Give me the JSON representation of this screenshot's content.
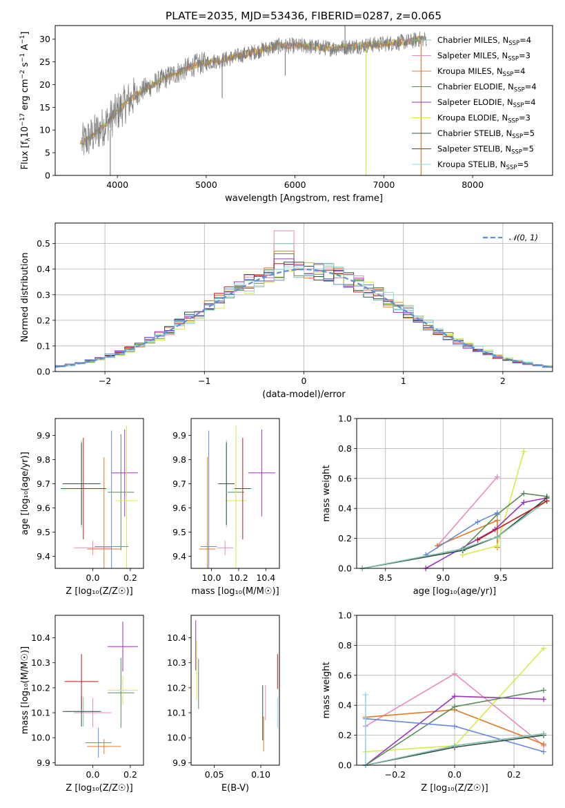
{
  "figure": {
    "title": "PLATE=2035, MJD=53436, FIBERID=0287, z=0.065"
  },
  "colors": {
    "chabrier_miles": "#7fbfaf",
    "salpeter_miles": "#e88bc0",
    "kroupa_miles": "#e07b24",
    "chabrier_elodie": "#5a8a5a",
    "salpeter_elodie": "#9b30c0",
    "kroupa_elodie": "#d8ea4a",
    "chabrier_stelib": "#2f4f3f",
    "salpeter_stelib": "#c01818",
    "kroupa_stelib": "#8ad8e8",
    "data_spectrum": "#808080",
    "model_blue": "#6688dd",
    "normal_curve": "#5b8fd8",
    "grid": "#b0b0b0"
  },
  "chart_data": [
    {
      "id": "spectrum",
      "type": "line",
      "xlabel": "wavelength [Angstrom, rest frame]",
      "ylabel_parts": [
        "Flux [f",
        "λ",
        "10",
        "−17",
        " erg cm",
        "−2",
        " s",
        "−1",
        " A",
        "−1",
        "]"
      ],
      "xlim": [
        3300,
        8900
      ],
      "ylim": [
        0,
        33
      ],
      "xticks": [
        4000,
        5000,
        6000,
        7000,
        8000
      ],
      "yticks": [
        0,
        5,
        10,
        15,
        20,
        25,
        30
      ],
      "grid": false,
      "legend_position": "right",
      "legend": [
        {
          "label": "Chabrier MILES, N",
          "sub": "SSP",
          "suffix": "=4",
          "color_key": "chabrier_miles"
        },
        {
          "label": "Salpeter MILES, N",
          "sub": "SSP",
          "suffix": "=3",
          "color_key": "salpeter_miles"
        },
        {
          "label": "Kroupa MILES, N",
          "sub": "SSP",
          "suffix": "=4",
          "color_key": "kroupa_miles"
        },
        {
          "label": "Chabrier ELODIE, N",
          "sub": "SSP",
          "suffix": "=4",
          "color_key": "chabrier_elodie"
        },
        {
          "label": "Salpeter ELODIE, N",
          "sub": "SSP",
          "suffix": "=4",
          "color_key": "salpeter_elodie"
        },
        {
          "label": "Kroupa ELODIE, N",
          "sub": "SSP",
          "suffix": "=3",
          "color_key": "kroupa_elodie"
        },
        {
          "label": "Chabrier STELIB, N",
          "sub": "SSP",
          "suffix": "=5",
          "color_key": "chabrier_stelib"
        },
        {
          "label": "Salpeter STELIB, N",
          "sub": "SSP",
          "suffix": "=5",
          "color_key": "salpeter_stelib"
        },
        {
          "label": "Kroupa STELIB, N",
          "sub": "SSP",
          "suffix": "=5",
          "color_key": "kroupa_stelib"
        }
      ],
      "trend": {
        "x": [
          3600,
          3800,
          3950,
          4100,
          4300,
          4600,
          4900,
          5200,
          5500,
          5800,
          6100,
          6400,
          6700,
          7000,
          7300,
          7400
        ],
        "y": [
          7,
          10,
          13,
          16,
          19,
          22,
          24.5,
          25.5,
          27,
          28.5,
          28.5,
          28,
          28.5,
          29,
          29.5,
          30
        ]
      },
      "vertical_features": [
        {
          "x": 3920,
          "y_low": 0,
          "y_high": 10
        },
        {
          "x": 5180,
          "y_low": 17,
          "y_high": 24
        },
        {
          "x": 5890,
          "y_low": 22,
          "y_high": 28
        },
        {
          "x": 6563,
          "y_low": 27,
          "y_high": 34
        },
        {
          "x": 6800,
          "y_low": 0,
          "y_high": 28
        },
        {
          "x": 7420,
          "y_low": 0,
          "y_high": 30
        }
      ]
    },
    {
      "id": "residual_hist",
      "type": "histogram",
      "xlabel": "(data-model)/error",
      "ylabel": "Normed distribution",
      "xlim": [
        -2.5,
        2.5
      ],
      "ylim": [
        0,
        0.58
      ],
      "xticks": [
        -2,
        -1,
        0,
        1,
        2
      ],
      "yticks": [
        0.0,
        0.1,
        0.2,
        0.3,
        0.4,
        0.5
      ],
      "grid": true,
      "bin_width": 0.1,
      "legend": [
        {
          "label": "𝒩(0, 1)",
          "color_key": "normal_curve",
          "style": "dashed"
        }
      ],
      "peak_values": [
        0.5,
        0.55,
        0.47,
        0.46,
        0.44
      ],
      "gaussian": {
        "mu": 0,
        "sigma": 1
      }
    },
    {
      "id": "age_vs_Z",
      "type": "scatter",
      "xlabel": "Z [log₁₀(Z/Z☉)]",
      "ylabel": "age  [log₁₀(age/yr)]",
      "xlim": [
        -0.2,
        0.27
      ],
      "ylim": [
        9.35,
        9.97
      ],
      "xticks": [
        0.0,
        0.2
      ],
      "xticklabels": [
        "0.0",
        "0.2"
      ],
      "yticks": [
        9.4,
        9.5,
        9.6,
        9.7,
        9.8,
        9.9
      ],
      "grid": false,
      "points": [
        {
          "x": -0.06,
          "xerr": 0.1,
          "y": 9.7,
          "yerr": 0.18,
          "color_key": "chabrier_miles"
        },
        {
          "x": 0.0,
          "xerr": 0.1,
          "y": 9.435,
          "yerr": 0.03,
          "color_key": "salpeter_miles"
        },
        {
          "x": 0.06,
          "xerr": 0.09,
          "y": 9.43,
          "yerr": 0.38,
          "color_key": "kroupa_miles"
        },
        {
          "x": 0.15,
          "xerr": 0.07,
          "y": 9.665,
          "yerr": 0.24,
          "color_key": "chabrier_elodie"
        },
        {
          "x": 0.17,
          "xerr": 0.07,
          "y": 9.745,
          "yerr": 0.18,
          "color_key": "salpeter_elodie"
        },
        {
          "x": 0.18,
          "xerr": 0.06,
          "y": 9.63,
          "yerr": 0.31,
          "color_key": "kroupa_elodie"
        },
        {
          "x": -0.06,
          "xerr": 0.1,
          "y": 9.7,
          "yerr": 0.17,
          "color_key": "chabrier_stelib"
        },
        {
          "x": -0.05,
          "xerr": 0.12,
          "y": 9.68,
          "yerr": 0.21,
          "color_key": "salpeter_stelib"
        },
        {
          "x": 0.1,
          "xerr": 0.09,
          "y": 9.44,
          "yerr": 0.48,
          "color_key": "model_blue"
        }
      ]
    },
    {
      "id": "age_vs_mass",
      "type": "scatter",
      "xlabel": "mass [log₁₀(M/M☉)]",
      "ylabel": "",
      "xlim": [
        9.85,
        10.5
      ],
      "ylim": [
        9.35,
        9.97
      ],
      "xticks": [
        10.0,
        10.2,
        10.4
      ],
      "xticklabels": [
        "10.0",
        "10.2",
        "10.4"
      ],
      "yticks": [
        9.4,
        9.5,
        9.6,
        9.7,
        9.8,
        9.9
      ],
      "grid": false,
      "points": [
        {
          "x": 10.11,
          "xerr": 0.06,
          "y": 9.7,
          "yerr": 0.18,
          "color_key": "chabrier_miles"
        },
        {
          "x": 10.1,
          "xerr": 0.06,
          "y": 9.435,
          "yerr": 0.03,
          "color_key": "salpeter_miles"
        },
        {
          "x": 9.97,
          "xerr": 0.06,
          "y": 9.43,
          "yerr": 0.38,
          "color_key": "kroupa_miles"
        },
        {
          "x": 10.18,
          "xerr": 0.06,
          "y": 9.665,
          "yerr": 0.24,
          "color_key": "chabrier_elodie"
        },
        {
          "x": 10.37,
          "xerr": 0.1,
          "y": 9.745,
          "yerr": 0.18,
          "color_key": "salpeter_elodie"
        },
        {
          "x": 10.18,
          "xerr": 0.08,
          "y": 9.63,
          "yerr": 0.31,
          "color_key": "kroupa_elodie"
        },
        {
          "x": 10.11,
          "xerr": 0.06,
          "y": 9.7,
          "yerr": 0.17,
          "color_key": "chabrier_stelib"
        },
        {
          "x": 10.23,
          "xerr": 0.06,
          "y": 9.68,
          "yerr": 0.21,
          "color_key": "salpeter_stelib"
        },
        {
          "x": 9.98,
          "xerr": 0.06,
          "y": 9.44,
          "yerr": 0.48,
          "color_key": "model_blue"
        }
      ]
    },
    {
      "id": "massweight_vs_age",
      "type": "line",
      "xlabel": "age  [log₁₀(age/yr)]",
      "ylabel": "mass weight",
      "xlim": [
        8.25,
        9.95
      ],
      "ylim": [
        0,
        1
      ],
      "xticks": [
        8.5,
        9.0,
        9.5
      ],
      "xticklabels": [
        "8.5",
        "9.0",
        "9.5"
      ],
      "yticks": [
        0.0,
        0.2,
        0.4,
        0.6,
        0.8,
        1.0
      ],
      "grid": true,
      "series": [
        {
          "color_key": "salpeter_miles",
          "x": [
            8.95,
            9.47
          ],
          "y": [
            0.15,
            0.61
          ]
        },
        {
          "color_key": "kroupa_miles",
          "x": [
            8.95,
            9.47,
            9.47
          ],
          "y": [
            0.15,
            0.32,
            0.14
          ]
        },
        {
          "color_key": "kroupa_elodie",
          "x": [
            9.17,
            9.47,
            9.7
          ],
          "y": [
            0.09,
            0.15,
            0.78
          ]
        },
        {
          "color_key": "salpeter_elodie",
          "x": [
            8.85,
            9.45,
            9.7,
            9.9
          ],
          "y": [
            0.0,
            0.26,
            0.44,
            0.47
          ]
        },
        {
          "color_key": "chabrier_elodie",
          "x": [
            9.17,
            9.47,
            9.7,
            9.9
          ],
          "y": [
            0.13,
            0.36,
            0.5,
            0.48
          ]
        },
        {
          "color_key": "model_blue",
          "x": [
            8.85,
            9.3,
            9.47
          ],
          "y": [
            0.09,
            0.31,
            0.37
          ]
        },
        {
          "color_key": "chabrier_stelib",
          "x": [
            8.3,
            9.17,
            9.47,
            9.9
          ],
          "y": [
            0.0,
            0.12,
            0.21,
            0.47
          ]
        },
        {
          "color_key": "chabrier_miles",
          "x": [
            8.3,
            9.17,
            9.47,
            9.9
          ],
          "y": [
            0.0,
            0.13,
            0.21,
            0.45
          ]
        },
        {
          "color_key": "salpeter_stelib",
          "x": [
            9.3,
            9.9
          ],
          "y": [
            0.19,
            0.45
          ]
        }
      ]
    },
    {
      "id": "mass_vs_Z",
      "type": "scatter",
      "xlabel": "Z [log₁₀(Z/Z☉)]",
      "ylabel": "mass [log₁₀(M/M☉)]",
      "xlim": [
        -0.2,
        0.27
      ],
      "ylim": [
        9.89,
        10.49
      ],
      "xticks": [
        0.0,
        0.2
      ],
      "xticklabels": [
        "0.0",
        "0.2"
      ],
      "yticks": [
        9.9,
        10.0,
        10.1,
        10.2,
        10.3,
        10.4
      ],
      "grid": false,
      "points": [
        {
          "x": -0.05,
          "xerr": 0.1,
          "y": 10.105,
          "yerr": 0.06,
          "color_key": "chabrier_miles"
        },
        {
          "x": 0.0,
          "xerr": 0.1,
          "y": 10.1,
          "yerr": 0.06,
          "color_key": "salpeter_miles"
        },
        {
          "x": 0.06,
          "xerr": 0.09,
          "y": 9.965,
          "yerr": 0.03,
          "color_key": "kroupa_miles"
        },
        {
          "x": 0.15,
          "xerr": 0.07,
          "y": 10.18,
          "yerr": 0.14,
          "color_key": "chabrier_elodie"
        },
        {
          "x": 0.16,
          "xerr": 0.08,
          "y": 10.365,
          "yerr": 0.1,
          "color_key": "salpeter_elodie"
        },
        {
          "x": 0.16,
          "xerr": 0.08,
          "y": 10.19,
          "yerr": 0.06,
          "color_key": "kroupa_elodie"
        },
        {
          "x": -0.06,
          "xerr": 0.1,
          "y": 10.105,
          "yerr": 0.06,
          "color_key": "chabrier_stelib"
        },
        {
          "x": -0.06,
          "xerr": 0.09,
          "y": 10.225,
          "yerr": 0.11,
          "color_key": "salpeter_stelib"
        },
        {
          "x": 0.03,
          "xerr": 0.07,
          "y": 9.98,
          "yerr": 0.06,
          "color_key": "model_blue"
        }
      ]
    },
    {
      "id": "mass_vs_ebv",
      "type": "scatter",
      "xlabel": "E(B-V)",
      "ylabel": "",
      "xlim": [
        0.025,
        0.12
      ],
      "ylim": [
        9.89,
        10.49
      ],
      "xticks": [
        0.05,
        0.1
      ],
      "xticklabels": [
        "0.05",
        "0.10"
      ],
      "yticks": [
        9.9,
        10.0,
        10.1,
        10.2,
        10.3,
        10.4
      ],
      "grid": false,
      "points": [
        {
          "x": 0.03,
          "y": 10.37,
          "yerr": 0.1,
          "color_key": "salpeter_elodie"
        },
        {
          "x": 0.031,
          "y": 10.27,
          "yerr": 0.12,
          "color_key": "kroupa_elodie"
        },
        {
          "x": 0.033,
          "y": 10.215,
          "yerr": 0.1,
          "color_key": "chabrier_elodie"
        },
        {
          "x": 0.102,
          "y": 10.1,
          "yerr": 0.11,
          "color_key": "chabrier_stelib"
        },
        {
          "x": 0.103,
          "y": 10.015,
          "yerr": 0.07,
          "color_key": "kroupa_miles"
        },
        {
          "x": 0.105,
          "y": 10.14,
          "yerr": 0.07,
          "color_key": "salpeter_miles"
        },
        {
          "x": 0.118,
          "y": 10.265,
          "yerr": 0.07,
          "color_key": "salpeter_stelib"
        },
        {
          "x": 0.118,
          "y": 10.1,
          "yerr": 0.06,
          "color_key": "kroupa_stelib"
        }
      ]
    },
    {
      "id": "massweight_vs_Z",
      "type": "line",
      "xlabel": "Z [log₁₀(Z/Z☉)]",
      "ylabel": "mass weight",
      "xlim": [
        -0.33,
        0.33
      ],
      "ylim": [
        0,
        1
      ],
      "xticks": [
        -0.2,
        0.0,
        0.2
      ],
      "xticklabels": [
        "−0.2",
        "0.0",
        "0.2"
      ],
      "yticks": [
        0.0,
        0.2,
        0.4,
        0.6,
        0.8,
        1.0
      ],
      "grid": true,
      "series": [
        {
          "color_key": "salpeter_miles",
          "x": [
            -0.3,
            0.0,
            0.3
          ],
          "y": [
            0.26,
            0.61,
            0.13
          ]
        },
        {
          "color_key": "kroupa_miles",
          "x": [
            -0.3,
            0.0,
            0.3
          ],
          "y": [
            0.32,
            0.37,
            0.14
          ]
        },
        {
          "color_key": "kroupa_elodie",
          "x": [
            -0.3,
            0.0,
            0.3
          ],
          "y": [
            0.09,
            0.13,
            0.78
          ]
        },
        {
          "color_key": "salpeter_elodie",
          "x": [
            -0.3,
            0.0,
            0.3
          ],
          "y": [
            0.0,
            0.46,
            0.44
          ]
        },
        {
          "color_key": "chabrier_elodie",
          "x": [
            -0.3,
            0.0,
            0.3
          ],
          "y": [
            0.0,
            0.39,
            0.5
          ]
        },
        {
          "color_key": "model_blue",
          "x": [
            -0.3,
            0.0,
            0.3
          ],
          "y": [
            0.31,
            0.26,
            0.09
          ]
        },
        {
          "color_key": "chabrier_stelib",
          "x": [
            -0.3,
            0.0,
            0.3
          ],
          "y": [
            0.0,
            0.12,
            0.2
          ]
        },
        {
          "color_key": "chabrier_miles",
          "x": [
            -0.3,
            0.0,
            0.3
          ],
          "y": [
            0.0,
            0.13,
            0.21
          ]
        },
        {
          "color_key": "kroupa_stelib",
          "x": [
            -0.3,
            -0.3
          ],
          "y": [
            0.0,
            0.47
          ]
        }
      ]
    }
  ]
}
